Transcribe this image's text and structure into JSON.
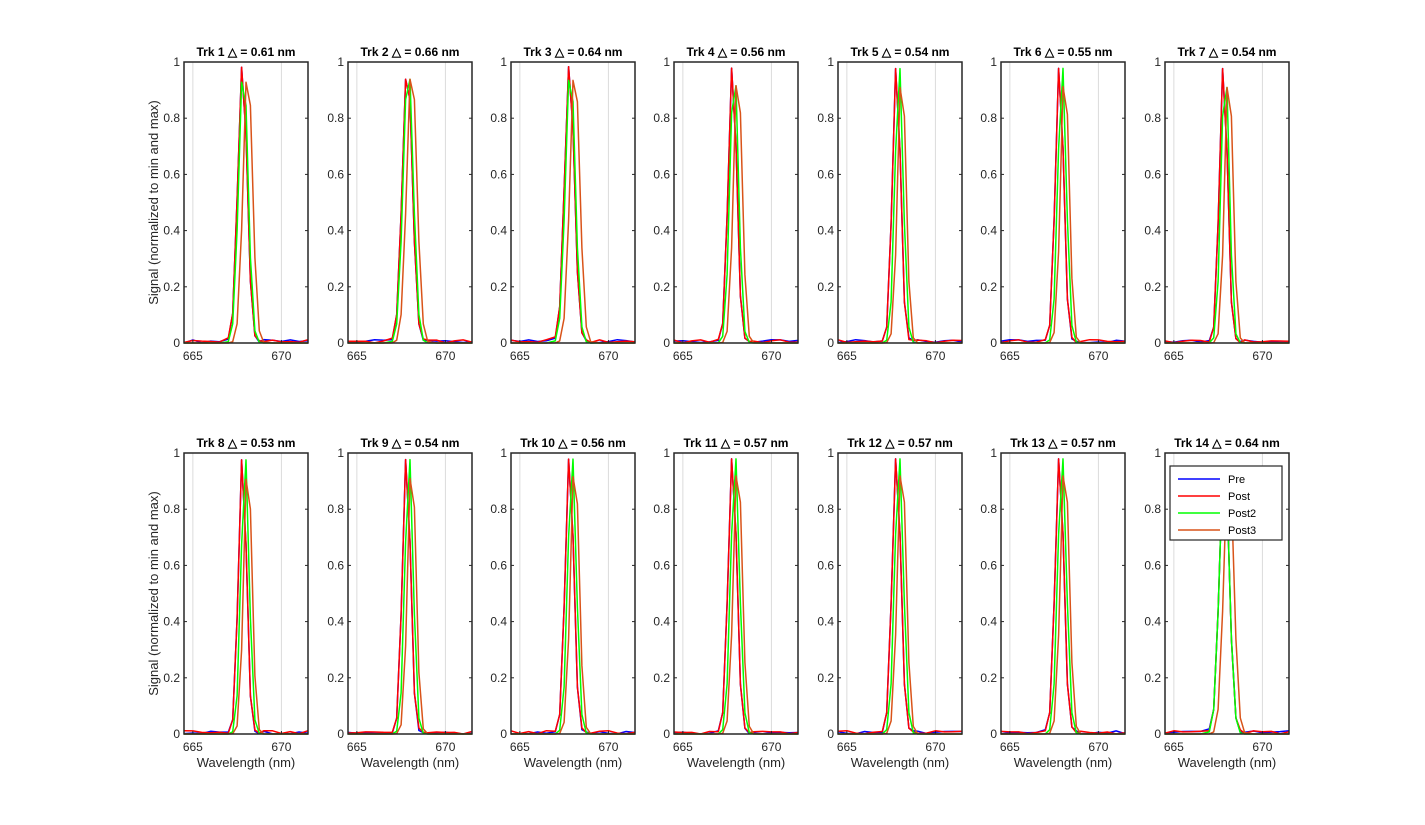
{
  "figure": {
    "ylabel": "Signal (normalized to min and max)",
    "xlabel": "Wavelength (nm)"
  },
  "legend": {
    "entries": [
      {
        "name": "Pre",
        "color": "#0000ff"
      },
      {
        "name": "Post",
        "color": "#ff0000"
      },
      {
        "name": "Post2",
        "color": "#00ff00"
      },
      {
        "name": "Post3",
        "color": "#d95319"
      }
    ],
    "location": "top-right (in Trk 14 panel)"
  },
  "chart_data": {
    "type": "line",
    "layout": "2 rows x 7 panels",
    "x": [
      664.5,
      665.0,
      665.5,
      666.0,
      666.5,
      667.0,
      667.25,
      667.5,
      667.75,
      668.0,
      668.25,
      668.5,
      668.75,
      669.0,
      669.5,
      670.0,
      670.5,
      671.0,
      671.5
    ],
    "xlim": [
      664.5,
      671.5
    ],
    "ylim": [
      0,
      1
    ],
    "xticks": [
      665,
      670
    ],
    "yticks": [
      0,
      0.2,
      0.4,
      0.6,
      0.8,
      1
    ],
    "grid": "x-only",
    "colors": {
      "Pre": "#0000ff",
      "Post": "#ff0000",
      "Post2": "#00ff00",
      "Post3": "#d95319"
    },
    "panels": [
      {
        "title": "Trk 1 △ = 0.61 nm",
        "peaks": {
          "Pre": 667.8,
          "Post": 667.8,
          "Post2": 667.85,
          "Post3": 668.1
        },
        "width": 0.61
      },
      {
        "title": "Trk 2 △ = 0.66 nm",
        "peaks": {
          "Pre": 667.85,
          "Post": 667.85,
          "Post2": 667.9,
          "Post3": 668.1
        },
        "width": 0.66
      },
      {
        "title": "Trk 3 △ = 0.64 nm",
        "peaks": {
          "Pre": 667.8,
          "Post": 667.8,
          "Post2": 667.85,
          "Post3": 668.1
        },
        "width": 0.64
      },
      {
        "title": "Trk 4 △ = 0.56 nm",
        "peaks": {
          "Pre": 667.8,
          "Post": 667.8,
          "Post2": 667.9,
          "Post3": 668.1
        },
        "width": 0.56
      },
      {
        "title": "Trk 5 △ = 0.54 nm",
        "peaks": {
          "Pre": 667.8,
          "Post": 667.8,
          "Post2": 667.95,
          "Post3": 668.1
        },
        "width": 0.54
      },
      {
        "title": "Trk 6 △ = 0.55 nm",
        "peaks": {
          "Pre": 667.8,
          "Post": 667.8,
          "Post2": 667.95,
          "Post3": 668.1
        },
        "width": 0.55
      },
      {
        "title": "Trk 7 △ = 0.54 nm",
        "peaks": {
          "Pre": 667.8,
          "Post": 667.8,
          "Post2": 667.9,
          "Post3": 668.1
        },
        "width": 0.54
      },
      {
        "title": "Trk 8 △ = 0.53 nm",
        "peaks": {
          "Pre": 667.8,
          "Post": 667.8,
          "Post2": 667.95,
          "Post3": 668.1
        },
        "width": 0.53
      },
      {
        "title": "Trk 9 △ = 0.54 nm",
        "peaks": {
          "Pre": 667.8,
          "Post": 667.8,
          "Post2": 667.95,
          "Post3": 668.1
        },
        "width": 0.54
      },
      {
        "title": "Trk 10 △ = 0.56 nm",
        "peaks": {
          "Pre": 667.8,
          "Post": 667.8,
          "Post2": 667.95,
          "Post3": 668.1
        },
        "width": 0.56
      },
      {
        "title": "Trk 11 △ = 0.57 nm",
        "peaks": {
          "Pre": 667.8,
          "Post": 667.8,
          "Post2": 667.95,
          "Post3": 668.1
        },
        "width": 0.57
      },
      {
        "title": "Trk 12 △ = 0.57 nm",
        "peaks": {
          "Pre": 667.8,
          "Post": 667.8,
          "Post2": 667.95,
          "Post3": 668.1
        },
        "width": 0.57
      },
      {
        "title": "Trk 13 △ = 0.57 nm",
        "peaks": {
          "Pre": 667.8,
          "Post": 667.8,
          "Post2": 667.95,
          "Post3": 668.1
        },
        "width": 0.57
      },
      {
        "title": "Trk 14 △ = 0.64 nm",
        "peaks": {
          "Pre": 667.85,
          "Post": 667.85,
          "Post2": 667.85,
          "Post3": 668.1
        },
        "width": 0.64
      }
    ]
  }
}
